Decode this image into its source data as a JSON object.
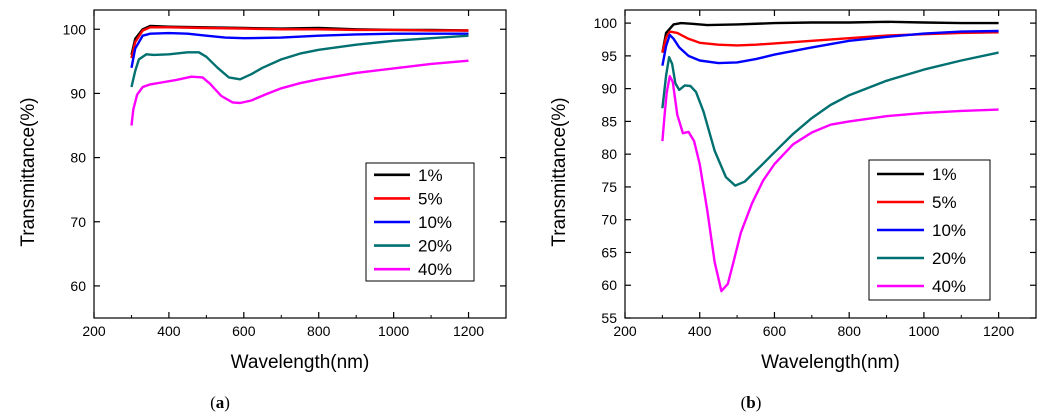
{
  "chart_data": [
    {
      "type": "line",
      "panel_label": "a",
      "xlabel": "Wavelength(nm)",
      "ylabel": "Transmittance(%)",
      "xlim": [
        200,
        1300
      ],
      "ylim": [
        55,
        103
      ],
      "xticks": [
        200,
        400,
        600,
        800,
        1000,
        1200
      ],
      "yticks": [
        60,
        70,
        80,
        90,
        100
      ],
      "legend_position": "bottom-right",
      "series": [
        {
          "name": "1%",
          "color": "#000000",
          "x": [
            300,
            310,
            330,
            350,
            400,
            500,
            600,
            700,
            800,
            900,
            1000,
            1100,
            1200
          ],
          "y": [
            96,
            98.5,
            100,
            100.5,
            100.4,
            100.3,
            100.2,
            100.1,
            100.2,
            100.0,
            99.9,
            99.9,
            99.8
          ]
        },
        {
          "name": "5%",
          "color": "#ff0000",
          "x": [
            300,
            310,
            330,
            350,
            400,
            500,
            600,
            700,
            800,
            900,
            1000,
            1100,
            1200
          ],
          "y": [
            95.5,
            98,
            99.8,
            100.3,
            100.3,
            100.2,
            100.1,
            100.0,
            100.0,
            99.9,
            99.9,
            99.8,
            99.8
          ]
        },
        {
          "name": "10%",
          "color": "#0000ff",
          "x": [
            300,
            310,
            330,
            350,
            400,
            450,
            500,
            550,
            600,
            700,
            800,
            900,
            1000,
            1100,
            1200
          ],
          "y": [
            94,
            97,
            99,
            99.3,
            99.4,
            99.3,
            99,
            98.7,
            98.6,
            98.7,
            99.0,
            99.2,
            99.3,
            99.3,
            99.3
          ]
        },
        {
          "name": "20%",
          "color": "#007070",
          "x": [
            300,
            310,
            320,
            340,
            360,
            400,
            450,
            480,
            500,
            530,
            560,
            590,
            620,
            650,
            700,
            750,
            800,
            900,
            1000,
            1100,
            1200
          ],
          "y": [
            91,
            93.5,
            95.3,
            96.1,
            96.0,
            96.1,
            96.4,
            96.4,
            95.7,
            94,
            92.5,
            92.2,
            93,
            94,
            95.3,
            96.2,
            96.8,
            97.6,
            98.2,
            98.6,
            99.0
          ]
        },
        {
          "name": "40%",
          "color": "#ff00ff",
          "x": [
            300,
            305,
            315,
            330,
            350,
            380,
            420,
            460,
            490,
            510,
            540,
            570,
            590,
            620,
            660,
            700,
            750,
            800,
            900,
            1000,
            1100,
            1200
          ],
          "y": [
            85,
            87.5,
            89.8,
            91,
            91.4,
            91.7,
            92.1,
            92.6,
            92.5,
            91.5,
            89.6,
            88.6,
            88.5,
            88.9,
            89.9,
            90.8,
            91.6,
            92.2,
            93.2,
            93.9,
            94.6,
            95.1
          ]
        }
      ]
    },
    {
      "type": "line",
      "panel_label": "b",
      "xlabel": "Wavelength(nm)",
      "ylabel": "Transmittance(%)",
      "xlim": [
        200,
        1300
      ],
      "ylim": [
        55,
        102
      ],
      "xticks": [
        200,
        400,
        600,
        800,
        1000,
        1200
      ],
      "yticks": [
        55,
        60,
        65,
        70,
        75,
        80,
        85,
        90,
        95,
        100
      ],
      "legend_position": "right",
      "series": [
        {
          "name": "1%",
          "color": "#000000",
          "x": [
            300,
            310,
            330,
            350,
            380,
            420,
            500,
            600,
            700,
            800,
            900,
            1000,
            1100,
            1200
          ],
          "y": [
            95.5,
            98.5,
            99.8,
            100,
            99.9,
            99.7,
            99.8,
            100,
            100.1,
            100.1,
            100.2,
            100.1,
            100.0,
            100.0
          ]
        },
        {
          "name": "5%",
          "color": "#ff0000",
          "x": [
            300,
            310,
            320,
            340,
            370,
            400,
            450,
            500,
            550,
            600,
            700,
            800,
            900,
            1000,
            1100,
            1200
          ],
          "y": [
            95.5,
            97.8,
            98.7,
            98.5,
            97.6,
            97,
            96.7,
            96.6,
            96.7,
            96.9,
            97.3,
            97.7,
            98.1,
            98.3,
            98.5,
            98.6
          ]
        },
        {
          "name": "10%",
          "color": "#0000ff",
          "x": [
            300,
            310,
            320,
            330,
            345,
            370,
            400,
            450,
            500,
            550,
            600,
            700,
            800,
            900,
            1000,
            1100,
            1200
          ],
          "y": [
            93.5,
            96.5,
            98.2,
            97.6,
            96.3,
            95,
            94.3,
            93.9,
            94,
            94.5,
            95.2,
            96.3,
            97.3,
            97.9,
            98.4,
            98.7,
            98.8
          ]
        },
        {
          "name": "20%",
          "color": "#007070",
          "x": [
            300,
            310,
            318,
            326,
            335,
            345,
            360,
            375,
            390,
            410,
            440,
            470,
            495,
            520,
            560,
            600,
            650,
            700,
            750,
            800,
            900,
            1000,
            1100,
            1200
          ],
          "y": [
            87,
            92,
            94.8,
            93.8,
            90.8,
            89.8,
            90.5,
            90.4,
            89.5,
            86.5,
            80.5,
            76.5,
            75.2,
            75.8,
            78,
            80.3,
            83.1,
            85.5,
            87.5,
            89,
            91.2,
            92.9,
            94.3,
            95.5
          ]
        },
        {
          "name": "40%",
          "color": "#ff00ff",
          "x": [
            300,
            306,
            312,
            320,
            328,
            340,
            355,
            370,
            385,
            400,
            420,
            440,
            458,
            475,
            490,
            510,
            540,
            570,
            600,
            650,
            700,
            750,
            800,
            900,
            1000,
            1100,
            1200
          ],
          "y": [
            82,
            86,
            89.5,
            91.9,
            91,
            86,
            83.2,
            83.4,
            82,
            78.5,
            71.5,
            63.5,
            59.1,
            60.2,
            63.5,
            68,
            72.5,
            76,
            78.5,
            81.5,
            83.3,
            84.5,
            85,
            85.8,
            86.3,
            86.6,
            86.8
          ]
        }
      ]
    }
  ],
  "captions": [
    "(a)",
    "(b)"
  ]
}
